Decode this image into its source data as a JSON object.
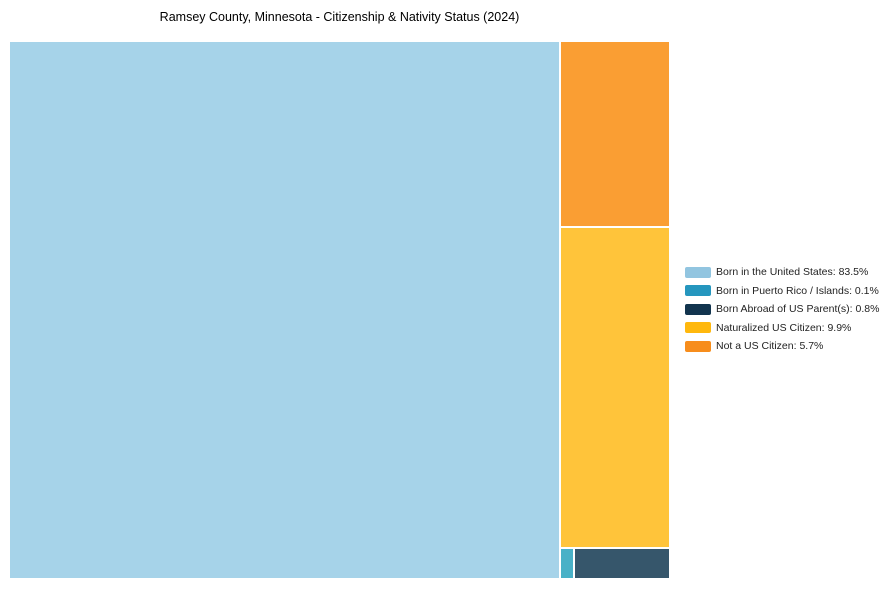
{
  "page": {
    "background": "#ffffff"
  },
  "chart_data": {
    "type": "treemap",
    "title": "Ramsey County, Minnesota - Citizenship & Nativity Status (2024)",
    "value_unit": "%",
    "legend_position": "right",
    "total": 100.0,
    "segments": [
      {
        "label": "Born in the United States",
        "value": 83.5,
        "color": "#a6d3e9",
        "legend_color": "#92c5e0"
      },
      {
        "label": "Born in Puerto Rico / Islands",
        "value": 0.1,
        "color": "#49b1c7",
        "legend_color": "#2596be"
      },
      {
        "label": "Born Abroad of US Parent(s)",
        "value": 0.8,
        "color": "#36566b",
        "legend_color": "#12344e"
      },
      {
        "label": "Naturalized US Citizen",
        "value": 9.9,
        "color": "#ffc43a",
        "legend_color": "#ffb80d"
      },
      {
        "label": "Not a US Citizen",
        "value": 5.7,
        "color": "#fa9e33",
        "legend_color": "#f78d1c"
      }
    ]
  }
}
